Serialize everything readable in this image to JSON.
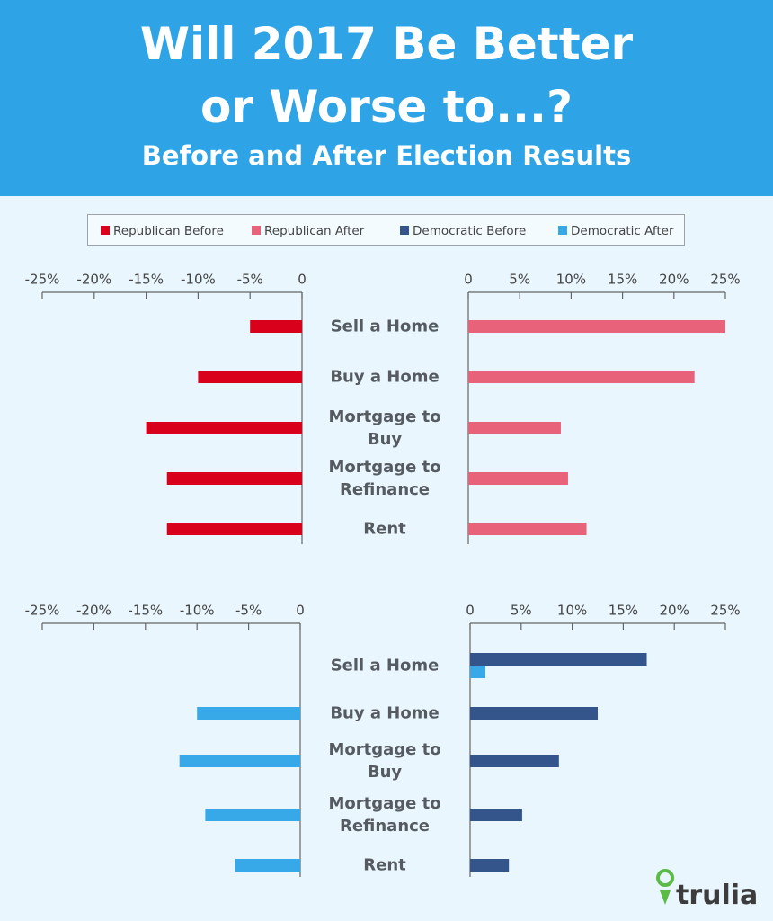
{
  "header": {
    "title": "Will 2017 Be Better or Worse to...?",
    "subtitle": "Before and After Election Results"
  },
  "brand": "trulia",
  "chart_data": [
    {
      "type": "bar",
      "orientation": "horizontal",
      "categories": [
        "Sell a Home",
        "Buy a Home",
        "Mortgage to Buy",
        "Mortgage to Refinance",
        "Rent"
      ],
      "series": [
        {
          "name": "Republican Before",
          "color": "#d9001b",
          "values": [
            -5,
            -10,
            -15,
            -13,
            -13
          ]
        },
        {
          "name": "Republican After",
          "color": "#e8637a",
          "values": [
            25,
            22,
            9,
            9.7,
            11.5
          ]
        }
      ],
      "axes": [
        {
          "xlim": [
            -25,
            0
          ],
          "xticks": [
            {
              "value": -25,
              "label": "-25%"
            },
            {
              "value": -20,
              "label": "-20%"
            },
            {
              "value": -15,
              "label": "-15%"
            },
            {
              "value": -10,
              "label": "-10%"
            },
            {
              "value": -5,
              "label": "-5%"
            },
            0
          ]
        },
        {
          "xlim": [
            0,
            25
          ],
          "xticks": [
            0,
            {
              "value": 5,
              "label": "5%"
            },
            {
              "value": 10,
              "label": "10%"
            },
            {
              "value": 15,
              "label": "15%"
            },
            {
              "value": 20,
              "label": "20%"
            },
            {
              "value": 25,
              "label": "25%"
            }
          ]
        }
      ]
    },
    {
      "type": "bar",
      "orientation": "horizontal",
      "categories": [
        "Sell a Home",
        "Buy a Home",
        "Mortgage to Buy",
        "Mortgage to Refinance",
        "Rent"
      ],
      "series": [
        {
          "name": "Democratic Before",
          "color": "#34558b",
          "values": [
            17.3,
            12.5,
            8.7,
            5.1,
            3.8
          ]
        },
        {
          "name": "Democratic After",
          "color": "#37a8e8",
          "values": [
            1.5,
            -10,
            -11.7,
            -9.2,
            -6.3
          ]
        }
      ],
      "axes": [
        {
          "xlim": [
            -25,
            0
          ],
          "xticks": [
            {
              "value": -25,
              "label": "-25%"
            },
            {
              "value": -20,
              "label": "-20%"
            },
            {
              "value": -15,
              "label": "-15%"
            },
            {
              "value": -10,
              "label": "-10%"
            },
            {
              "value": -5,
              "label": "-5%"
            },
            0
          ]
        },
        {
          "xlim": [
            0,
            25
          ],
          "xticks": [
            0,
            {
              "value": 5,
              "label": "5%"
            },
            {
              "value": 10,
              "label": "10%"
            },
            {
              "value": 15,
              "label": "15%"
            },
            {
              "value": 20,
              "label": "20%"
            },
            {
              "value": 25,
              "label": "25%"
            }
          ]
        }
      ]
    }
  ]
}
